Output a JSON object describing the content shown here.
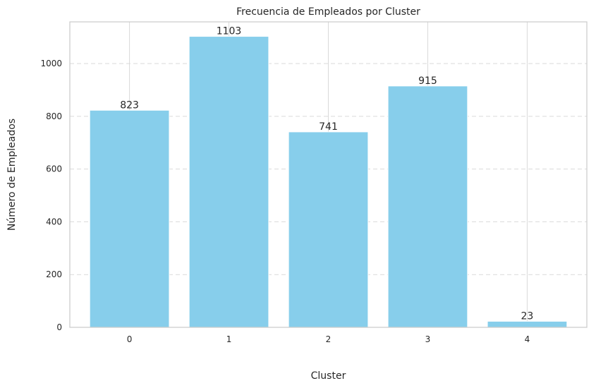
{
  "chart_data": {
    "type": "bar",
    "title": "Frecuencia de Empleados por Cluster",
    "xlabel": "Cluster",
    "ylabel": "Número de Empleados",
    "categories": [
      "0",
      "1",
      "2",
      "3",
      "4"
    ],
    "values": [
      823,
      1103,
      741,
      915,
      23
    ],
    "data_labels": [
      "823",
      "1103",
      "741",
      "915",
      "23"
    ],
    "ylim": [
      0,
      1158
    ],
    "yticks": [
      0,
      200,
      400,
      600,
      800,
      1000
    ],
    "ytick_labels": [
      "0",
      "200",
      "400",
      "600",
      "800",
      "1000"
    ],
    "grid": {
      "x": "solid",
      "y": "dashed"
    },
    "colors": {
      "bar": "#87ceeb",
      "bar_edge": "#ffffff",
      "grid": "#d9d9d9",
      "spine": "#cccccc",
      "text": "#262626"
    }
  }
}
